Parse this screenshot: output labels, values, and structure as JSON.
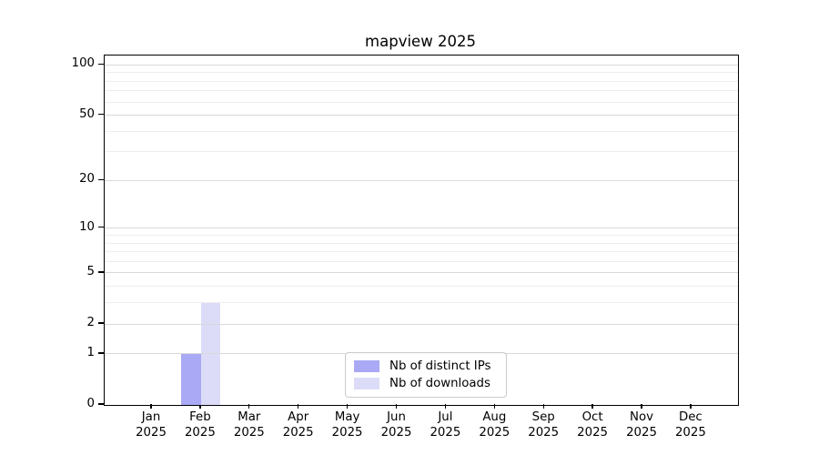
{
  "title": "mapview 2025",
  "chart_data": {
    "type": "bar",
    "title": "mapview 2025",
    "xlabel": "",
    "ylabel": "",
    "categories": [
      "Jan 2025",
      "Feb 2025",
      "Mar 2025",
      "Apr 2025",
      "May 2025",
      "Jun 2025",
      "Jul 2025",
      "Aug 2025",
      "Sep 2025",
      "Oct 2025",
      "Nov 2025",
      "Dec 2025"
    ],
    "series": [
      {
        "name": "Nb of distinct IPs",
        "color": "#a9a9f5",
        "values": [
          0,
          1,
          0,
          0,
          0,
          0,
          0,
          0,
          0,
          0,
          0,
          0
        ]
      },
      {
        "name": "Nb of downloads",
        "color": "#dcdcf9",
        "values": [
          0,
          3,
          0,
          0,
          0,
          0,
          0,
          0,
          0,
          0,
          0,
          0
        ]
      }
    ],
    "yscale": "log1p",
    "ylim": [
      0,
      113.5
    ],
    "yticks": [
      {
        "value": 0,
        "label": "0"
      },
      {
        "value": 1,
        "label": "1"
      },
      {
        "value": 2,
        "label": "2"
      },
      {
        "value": 5,
        "label": "5"
      },
      {
        "value": 10,
        "label": "10"
      },
      {
        "value": 20,
        "label": "20"
      },
      {
        "value": 50,
        "label": "50"
      },
      {
        "value": 100,
        "label": "100"
      }
    ],
    "yminor": [
      3,
      4,
      6,
      7,
      8,
      9,
      30,
      40,
      60,
      70,
      80,
      90
    ],
    "grid": "horizontal-major-and-minor-drawn-above-bars",
    "legend_position": "lower-center-inside-axes"
  },
  "colors": {
    "grid_major": "#d9d9d9",
    "grid_minor": "#ededed",
    "spine": "#000000",
    "background": "#ffffff"
  }
}
